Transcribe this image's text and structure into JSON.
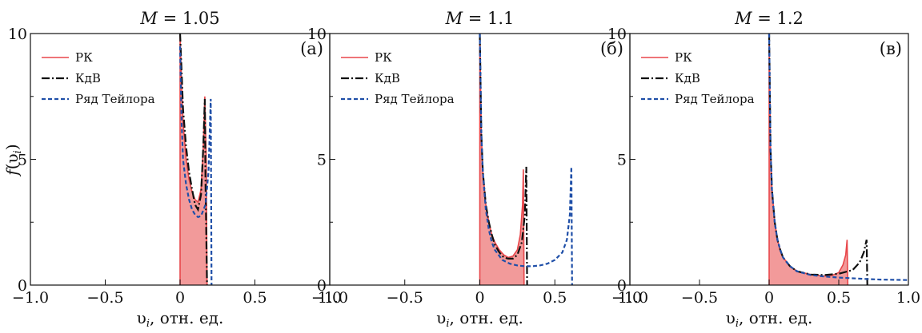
{
  "figure": {
    "ylabel": "f(υ_i)",
    "xlabel_prefix": "υ",
    "xlabel_sub": "i",
    "xlabel_suffix": ", отн. ед."
  },
  "chart_data": [
    {
      "type": "line",
      "title": "M = 1.05",
      "panel_label": "(а)",
      "xlabel": "υi, отн. ед.",
      "ylabel": "f(υi)",
      "xlim": [
        -1.0,
        1.0
      ],
      "ylim": [
        0,
        10
      ],
      "xticks": [
        "−1.0",
        "−0.5",
        "0",
        "0.5",
        "1.0"
      ],
      "yticks": [
        "0",
        "5",
        "10"
      ],
      "legend": [
        "РК",
        "КдВ",
        "Ряд Тейлора"
      ],
      "series": [
        {
          "name": "РК",
          "style": "solid",
          "color": "#e8474b",
          "fill": "#f29a9a",
          "points": [
            [
              0,
              0
            ],
            [
              0,
              10
            ],
            [
              0.01,
              8
            ],
            [
              0.02,
              6.5
            ],
            [
              0.04,
              5
            ],
            [
              0.06,
              4.2
            ],
            [
              0.08,
              3.7
            ],
            [
              0.1,
              3.4
            ],
            [
              0.12,
              3.3
            ],
            [
              0.14,
              3.8
            ],
            [
              0.155,
              5.5
            ],
            [
              0.165,
              7.5
            ],
            [
              0.175,
              5.0
            ],
            [
              0.18,
              0
            ]
          ]
        },
        {
          "name": "КдВ",
          "style": "dashdot",
          "color": "#111111",
          "points": [
            [
              0,
              10
            ],
            [
              0.01,
              8.5
            ],
            [
              0.02,
              7
            ],
            [
              0.04,
              5.5
            ],
            [
              0.06,
              4.5
            ],
            [
              0.08,
              3.8
            ],
            [
              0.1,
              3.2
            ],
            [
              0.12,
              3.0
            ],
            [
              0.14,
              3.6
            ],
            [
              0.155,
              5.5
            ],
            [
              0.165,
              7.4
            ],
            [
              0.17,
              4.0
            ],
            [
              0.18,
              0
            ]
          ]
        },
        {
          "name": "Ряд Тейлора",
          "style": "dotted",
          "color": "#1f4fa8",
          "points": [
            [
              0,
              9.5
            ],
            [
              0.01,
              6.5
            ],
            [
              0.02,
              5
            ],
            [
              0.04,
              4
            ],
            [
              0.06,
              3.4
            ],
            [
              0.08,
              3.0
            ],
            [
              0.1,
              2.8
            ],
            [
              0.12,
              2.7
            ],
            [
              0.14,
              2.75
            ],
            [
              0.17,
              3.2
            ],
            [
              0.19,
              4.5
            ],
            [
              0.205,
              7.4
            ],
            [
              0.21,
              0
            ]
          ]
        }
      ]
    },
    {
      "type": "line",
      "title": "M = 1.1",
      "panel_label": "(б)",
      "xlabel": "υi, отн. ед.",
      "ylabel": "",
      "xlim": [
        -1.0,
        1.0
      ],
      "ylim": [
        0,
        10
      ],
      "xticks": [
        "−1.0",
        "−0.5",
        "0",
        "0.5",
        "1.0"
      ],
      "yticks": [
        "0",
        "5",
        "10"
      ],
      "legend": [
        "РК",
        "КдВ",
        "Ряд Тейлора"
      ],
      "series": [
        {
          "name": "РК",
          "style": "solid",
          "color": "#e8474b",
          "fill": "#f29a9a",
          "points": [
            [
              0,
              0
            ],
            [
              0,
              10
            ],
            [
              0.01,
              6
            ],
            [
              0.02,
              4.5
            ],
            [
              0.04,
              3.2
            ],
            [
              0.06,
              2.5
            ],
            [
              0.08,
              2.0
            ],
            [
              0.1,
              1.7
            ],
            [
              0.13,
              1.4
            ],
            [
              0.16,
              1.2
            ],
            [
              0.19,
              1.1
            ],
            [
              0.22,
              1.15
            ],
            [
              0.25,
              1.4
            ],
            [
              0.27,
              2.0
            ],
            [
              0.285,
              3.2
            ],
            [
              0.29,
              4.6
            ],
            [
              0.295,
              0
            ]
          ]
        },
        {
          "name": "КдВ",
          "style": "dashdot",
          "color": "#111111",
          "points": [
            [
              0,
              10
            ],
            [
              0.01,
              6
            ],
            [
              0.02,
              4.5
            ],
            [
              0.04,
              3.2
            ],
            [
              0.06,
              2.5
            ],
            [
              0.08,
              2.0
            ],
            [
              0.1,
              1.6
            ],
            [
              0.13,
              1.3
            ],
            [
              0.16,
              1.1
            ],
            [
              0.19,
              1.05
            ],
            [
              0.22,
              1.05
            ],
            [
              0.25,
              1.2
            ],
            [
              0.28,
              1.7
            ],
            [
              0.3,
              2.8
            ],
            [
              0.31,
              4.7
            ],
            [
              0.315,
              0
            ]
          ]
        },
        {
          "name": "Ряд Тейлора",
          "style": "dotted",
          "color": "#1f4fa8",
          "points": [
            [
              0,
              10
            ],
            [
              0.01,
              6
            ],
            [
              0.02,
              4.5
            ],
            [
              0.04,
              3.0
            ],
            [
              0.06,
              2.2
            ],
            [
              0.08,
              1.7
            ],
            [
              0.1,
              1.4
            ],
            [
              0.15,
              1.0
            ],
            [
              0.2,
              0.85
            ],
            [
              0.25,
              0.78
            ],
            [
              0.3,
              0.75
            ],
            [
              0.35,
              0.75
            ],
            [
              0.4,
              0.78
            ],
            [
              0.45,
              0.85
            ],
            [
              0.5,
              1.0
            ],
            [
              0.55,
              1.3
            ],
            [
              0.58,
              1.8
            ],
            [
              0.6,
              2.8
            ],
            [
              0.61,
              4.7
            ],
            [
              0.615,
              0
            ]
          ]
        }
      ]
    },
    {
      "type": "line",
      "title": "M = 1.2",
      "panel_label": "(в)",
      "xlabel": "υi, отн. ед.",
      "ylabel": "",
      "xlim": [
        -1.0,
        1.0
      ],
      "ylim": [
        0,
        10
      ],
      "xticks": [
        "−1.0",
        "−0.5",
        "0",
        "0.5",
        "1.0"
      ],
      "yticks": [
        "0",
        "5",
        "10"
      ],
      "legend": [
        "РК",
        "КдВ",
        "Ряд Тейлора"
      ],
      "series": [
        {
          "name": "РК",
          "style": "solid",
          "color": "#e8474b",
          "fill": "#f29a9a",
          "points": [
            [
              0,
              0
            ],
            [
              0,
              10
            ],
            [
              0.01,
              5.5
            ],
            [
              0.02,
              3.8
            ],
            [
              0.04,
              2.5
            ],
            [
              0.06,
              1.8
            ],
            [
              0.08,
              1.4
            ],
            [
              0.1,
              1.1
            ],
            [
              0.15,
              0.75
            ],
            [
              0.2,
              0.55
            ],
            [
              0.3,
              0.42
            ],
            [
              0.4,
              0.36
            ],
            [
              0.45,
              0.38
            ],
            [
              0.5,
              0.5
            ],
            [
              0.53,
              0.8
            ],
            [
              0.55,
              1.2
            ],
            [
              0.56,
              1.8
            ],
            [
              0.565,
              0
            ]
          ]
        },
        {
          "name": "КдВ",
          "style": "dashdot",
          "color": "#111111",
          "points": [
            [
              0,
              10
            ],
            [
              0.01,
              5.5
            ],
            [
              0.02,
              3.8
            ],
            [
              0.04,
              2.5
            ],
            [
              0.06,
              1.8
            ],
            [
              0.08,
              1.4
            ],
            [
              0.1,
              1.1
            ],
            [
              0.15,
              0.75
            ],
            [
              0.2,
              0.55
            ],
            [
              0.3,
              0.42
            ],
            [
              0.4,
              0.4
            ],
            [
              0.5,
              0.45
            ],
            [
              0.6,
              0.6
            ],
            [
              0.65,
              0.9
            ],
            [
              0.68,
              1.3
            ],
            [
              0.7,
              1.8
            ],
            [
              0.705,
              0
            ]
          ]
        },
        {
          "name": "Ряд Тейлора",
          "style": "dotted",
          "color": "#1f4fa8",
          "points": [
            [
              0,
              10
            ],
            [
              0.01,
              5.5
            ],
            [
              0.02,
              3.8
            ],
            [
              0.04,
              2.5
            ],
            [
              0.06,
              1.8
            ],
            [
              0.08,
              1.4
            ],
            [
              0.1,
              1.1
            ],
            [
              0.15,
              0.75
            ],
            [
              0.2,
              0.55
            ],
            [
              0.3,
              0.4
            ],
            [
              0.4,
              0.34
            ],
            [
              0.5,
              0.3
            ],
            [
              0.6,
              0.27
            ],
            [
              0.7,
              0.24
            ],
            [
              0.8,
              0.22
            ],
            [
              0.9,
              0.21
            ],
            [
              1.0,
              0.2
            ]
          ]
        }
      ]
    }
  ]
}
